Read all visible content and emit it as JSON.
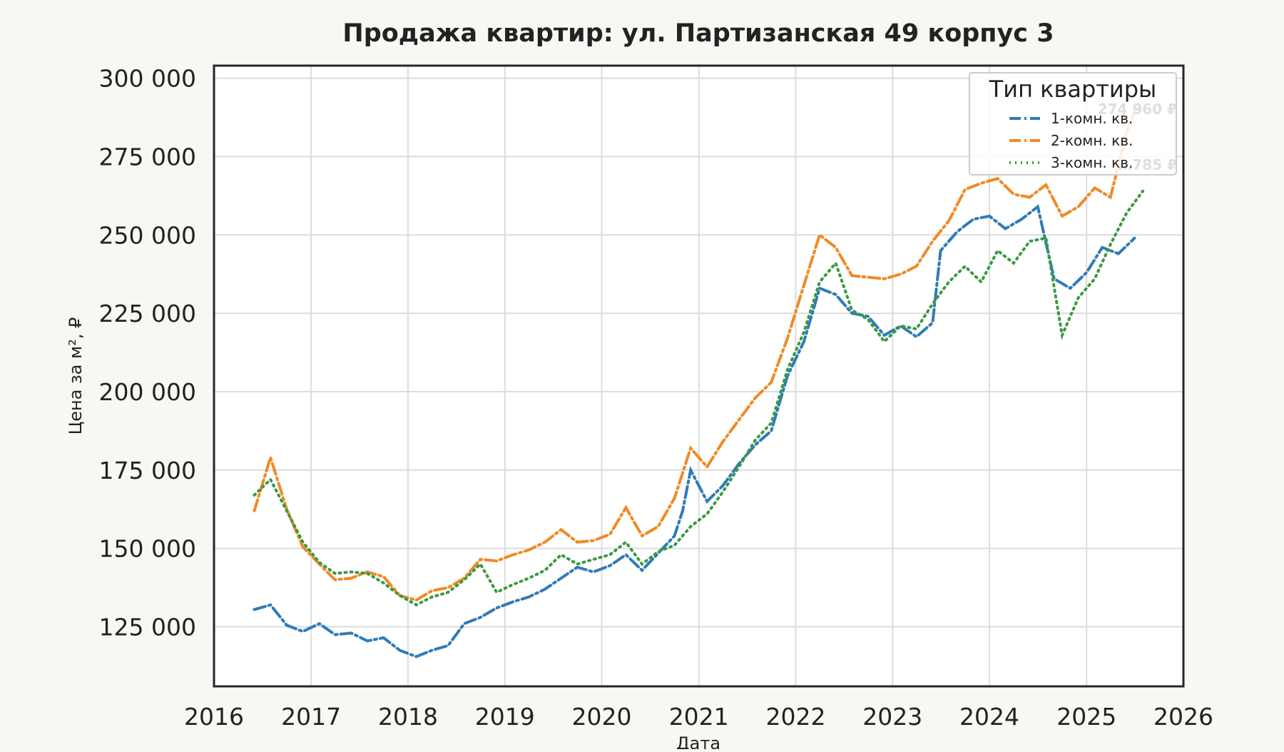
{
  "chart_data": {
    "type": "line",
    "title": "Продажа квартир: ул. Партизанская 49 корпус 3",
    "xlabel": "Дата",
    "ylabel": "Цена за м², ₽",
    "x_ticks": [
      "2016",
      "2017",
      "2018",
      "2019",
      "2020",
      "2021",
      "2022",
      "2023",
      "2024",
      "2025",
      "2026"
    ],
    "y_ticks": [
      "125 000",
      "150 000",
      "175 000",
      "200 000",
      "225 000",
      "250 000",
      "275 000",
      "300 000"
    ],
    "xlim": [
      "2016-01-01",
      "2026-01-01"
    ],
    "ylim": [
      106000,
      304000
    ],
    "grid": true,
    "legend": {
      "title": "Тип квартиры",
      "position": "top-right"
    },
    "end_labels": [
      "274 960 ₽",
      "…785 ₽"
    ],
    "series": [
      {
        "name": "1-комн. кв.",
        "color": "#2f7bb7",
        "style": "dash-dot",
        "points": [
          [
            "2016-06",
            130500
          ],
          [
            "2016-08",
            132000
          ],
          [
            "2016-10",
            125500
          ],
          [
            "2016-12",
            123500
          ],
          [
            "2017-02",
            126000
          ],
          [
            "2017-04",
            122500
          ],
          [
            "2017-06",
            123000
          ],
          [
            "2017-08",
            120500
          ],
          [
            "2017-10",
            121500
          ],
          [
            "2017-12",
            117500
          ],
          [
            "2018-02",
            115500
          ],
          [
            "2018-04",
            117500
          ],
          [
            "2018-06",
            119000
          ],
          [
            "2018-08",
            126000
          ],
          [
            "2018-10",
            128000
          ],
          [
            "2018-12",
            131000
          ],
          [
            "2019-02",
            133000
          ],
          [
            "2019-04",
            134500
          ],
          [
            "2019-06",
            137000
          ],
          [
            "2019-08",
            140500
          ],
          [
            "2019-10",
            144000
          ],
          [
            "2019-12",
            142500
          ],
          [
            "2020-02",
            144500
          ],
          [
            "2020-04",
            148000
          ],
          [
            "2020-06",
            143000
          ],
          [
            "2020-08",
            148500
          ],
          [
            "2020-10",
            154000
          ],
          [
            "2020-11",
            162000
          ],
          [
            "2020-12",
            175000
          ],
          [
            "2021-02",
            165000
          ],
          [
            "2021-04",
            170000
          ],
          [
            "2021-06",
            177000
          ],
          [
            "2021-08",
            183000
          ],
          [
            "2021-10",
            187500
          ],
          [
            "2021-12",
            205000
          ],
          [
            "2022-02",
            216000
          ],
          [
            "2022-04",
            233000
          ],
          [
            "2022-06",
            231000
          ],
          [
            "2022-08",
            225000
          ],
          [
            "2022-10",
            224000
          ],
          [
            "2022-12",
            218000
          ],
          [
            "2023-02",
            221000
          ],
          [
            "2023-04",
            217500
          ],
          [
            "2023-06",
            222000
          ],
          [
            "2023-07",
            245000
          ],
          [
            "2023-09",
            251000
          ],
          [
            "2023-11",
            255000
          ],
          [
            "2024-01",
            256000
          ],
          [
            "2024-03",
            252000
          ],
          [
            "2024-05",
            255000
          ],
          [
            "2024-07",
            259000
          ],
          [
            "2024-09",
            236000
          ],
          [
            "2024-11",
            233000
          ],
          [
            "2025-01",
            238000
          ],
          [
            "2025-03",
            246000
          ],
          [
            "2025-05",
            244000
          ],
          [
            "2025-07",
            249000
          ]
        ]
      },
      {
        "name": "2-комн. кв.",
        "color": "#f08a24",
        "style": "dash-dot",
        "points": [
          [
            "2016-06",
            162000
          ],
          [
            "2016-08",
            179000
          ],
          [
            "2016-10",
            162500
          ],
          [
            "2016-12",
            150500
          ],
          [
            "2017-02",
            145000
          ],
          [
            "2017-04",
            140000
          ],
          [
            "2017-06",
            140500
          ],
          [
            "2017-08",
            142500
          ],
          [
            "2017-10",
            141000
          ],
          [
            "2017-12",
            135000
          ],
          [
            "2018-02",
            133500
          ],
          [
            "2018-04",
            136500
          ],
          [
            "2018-06",
            137500
          ],
          [
            "2018-08",
            140500
          ],
          [
            "2018-10",
            146500
          ],
          [
            "2018-12",
            146000
          ],
          [
            "2019-02",
            148000
          ],
          [
            "2019-04",
            149500
          ],
          [
            "2019-06",
            152000
          ],
          [
            "2019-08",
            156000
          ],
          [
            "2019-10",
            152000
          ],
          [
            "2019-12",
            152500
          ],
          [
            "2020-02",
            154500
          ],
          [
            "2020-04",
            163000
          ],
          [
            "2020-06",
            154000
          ],
          [
            "2020-08",
            157000
          ],
          [
            "2020-10",
            166000
          ],
          [
            "2020-12",
            182000
          ],
          [
            "2021-02",
            176000
          ],
          [
            "2021-04",
            184000
          ],
          [
            "2021-06",
            191000
          ],
          [
            "2021-08",
            198000
          ],
          [
            "2021-10",
            203000
          ],
          [
            "2021-12",
            217000
          ],
          [
            "2022-02",
            234000
          ],
          [
            "2022-04",
            250000
          ],
          [
            "2022-06",
            246000
          ],
          [
            "2022-08",
            237000
          ],
          [
            "2022-10",
            236500
          ],
          [
            "2022-12",
            236000
          ],
          [
            "2023-02",
            237500
          ],
          [
            "2023-04",
            240000
          ],
          [
            "2023-06",
            248000
          ],
          [
            "2023-08",
            254500
          ],
          [
            "2023-10",
            264500
          ],
          [
            "2023-12",
            266500
          ],
          [
            "2024-02",
            268000
          ],
          [
            "2024-04",
            263000
          ],
          [
            "2024-06",
            262000
          ],
          [
            "2024-08",
            266000
          ],
          [
            "2024-10",
            256000
          ],
          [
            "2024-12",
            259000
          ],
          [
            "2025-02",
            265000
          ],
          [
            "2025-04",
            262000
          ],
          [
            "2025-06",
            283000
          ],
          [
            "2025-08",
            296000
          ]
        ]
      },
      {
        "name": "3-комн. кв.",
        "color": "#3a9a43",
        "style": "dotted",
        "points": [
          [
            "2016-06",
            167000
          ],
          [
            "2016-08",
            172000
          ],
          [
            "2016-10",
            162000
          ],
          [
            "2016-12",
            152000
          ],
          [
            "2017-02",
            145500
          ],
          [
            "2017-04",
            142000
          ],
          [
            "2017-06",
            142500
          ],
          [
            "2017-08",
            142000
          ],
          [
            "2017-10",
            139000
          ],
          [
            "2017-12",
            135000
          ],
          [
            "2018-02",
            132000
          ],
          [
            "2018-04",
            134500
          ],
          [
            "2018-06",
            136000
          ],
          [
            "2018-08",
            140000
          ],
          [
            "2018-10",
            145000
          ],
          [
            "2018-12",
            136000
          ],
          [
            "2019-02",
            138500
          ],
          [
            "2019-04",
            140500
          ],
          [
            "2019-06",
            143000
          ],
          [
            "2019-08",
            148000
          ],
          [
            "2019-10",
            145000
          ],
          [
            "2019-12",
            146500
          ],
          [
            "2020-02",
            148000
          ],
          [
            "2020-04",
            152000
          ],
          [
            "2020-06",
            145000
          ],
          [
            "2020-08",
            149000
          ],
          [
            "2020-10",
            151000
          ],
          [
            "2020-12",
            157000
          ],
          [
            "2021-02",
            161000
          ],
          [
            "2021-04",
            168000
          ],
          [
            "2021-06",
            176000
          ],
          [
            "2021-08",
            184500
          ],
          [
            "2021-10",
            190000
          ],
          [
            "2021-12",
            207000
          ],
          [
            "2022-02",
            219000
          ],
          [
            "2022-04",
            235000
          ],
          [
            "2022-06",
            241000
          ],
          [
            "2022-08",
            226000
          ],
          [
            "2022-10",
            223000
          ],
          [
            "2022-12",
            216000
          ],
          [
            "2023-02",
            221000
          ],
          [
            "2023-04",
            220000
          ],
          [
            "2023-06",
            228000
          ],
          [
            "2023-08",
            235000
          ],
          [
            "2023-10",
            240000
          ],
          [
            "2023-12",
            235000
          ],
          [
            "2024-02",
            245000
          ],
          [
            "2024-04",
            241000
          ],
          [
            "2024-06",
            248000
          ],
          [
            "2024-08",
            249000
          ],
          [
            "2024-10",
            218000
          ],
          [
            "2024-12",
            230000
          ],
          [
            "2025-02",
            236000
          ],
          [
            "2025-04",
            247000
          ],
          [
            "2025-06",
            257000
          ],
          [
            "2025-08",
            264000
          ]
        ]
      }
    ]
  }
}
